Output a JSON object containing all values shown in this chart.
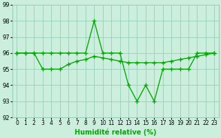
{
  "line1_x": [
    0,
    1,
    2,
    3,
    4,
    5,
    6,
    7,
    8,
    9,
    10,
    11,
    12,
    13,
    14,
    15,
    16,
    17,
    18,
    19,
    20,
    21,
    22,
    23
  ],
  "line1_y": [
    96,
    96,
    96,
    96,
    96,
    96,
    96,
    96,
    96,
    98,
    96,
    96,
    96,
    94,
    93,
    94,
    93,
    95,
    95,
    95,
    95,
    96,
    96,
    96
  ],
  "line2_x": [
    0,
    1,
    2,
    3,
    4,
    5,
    6,
    7,
    8,
    9,
    10,
    11,
    12,
    13,
    14,
    15,
    16,
    17,
    18,
    19,
    20,
    21,
    22,
    23
  ],
  "line2_y": [
    96,
    96,
    96,
    95,
    95,
    95,
    95.3,
    95.5,
    95.6,
    95.8,
    95.7,
    95.6,
    95.5,
    95.4,
    95.4,
    95.4,
    95.4,
    95.4,
    95.5,
    95.6,
    95.7,
    95.8,
    95.9,
    96
  ],
  "line_color": "#00aa00",
  "bg_color": "#cceedd",
  "grid_color": "#99ccbb",
  "xlabel": "Humidité relative (%)",
  "ylim": [
    92,
    99
  ],
  "xlim": [
    -0.5,
    23.5
  ],
  "yticks": [
    92,
    93,
    94,
    95,
    96,
    97,
    98,
    99
  ],
  "xticks": [
    0,
    1,
    2,
    3,
    4,
    5,
    6,
    7,
    8,
    9,
    10,
    11,
    12,
    13,
    14,
    15,
    16,
    17,
    18,
    19,
    20,
    21,
    22,
    23
  ],
  "marker": "+",
  "linewidth": 1.0,
  "markersize": 4,
  "xlabel_fontsize": 7,
  "tick_fontsize": 5.5,
  "ytick_fontsize": 6
}
